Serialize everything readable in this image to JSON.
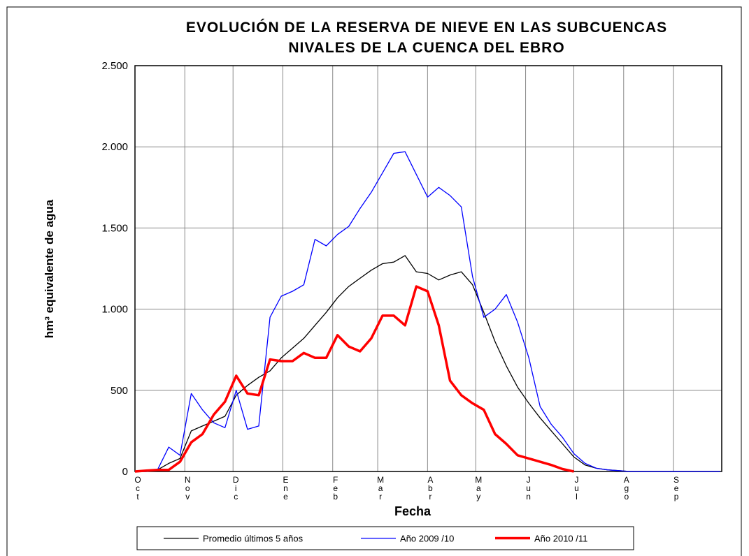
{
  "chart_data": {
    "type": "line",
    "title": [
      "EVOLUCIÓN DE LA RESERVA DE NIEVE EN LAS SUBCUENCAS",
      "NIVALES DE LA CUENCA DEL EBRO"
    ],
    "x_label": "Fecha",
    "y_label": "hm³ equivalente de agua",
    "x": [
      0,
      7,
      14,
      21,
      28,
      35,
      42,
      49,
      56,
      63,
      70,
      77,
      84,
      91,
      98,
      105,
      112,
      119,
      126,
      133,
      140,
      147,
      154,
      161,
      168,
      175,
      182,
      189,
      196,
      203,
      210,
      217,
      224,
      231,
      238,
      245,
      252,
      259,
      266,
      273,
      280,
      287,
      294,
      301,
      308,
      315,
      322,
      329,
      336,
      343,
      350,
      357,
      364
    ],
    "xlim": [
      0,
      365
    ],
    "xticks": [
      {
        "value": 0,
        "label": "Oct"
      },
      {
        "value": 31,
        "label": "Nov"
      },
      {
        "value": 61,
        "label": "Dic"
      },
      {
        "value": 92,
        "label": "Ene"
      },
      {
        "value": 123,
        "label": "Feb"
      },
      {
        "value": 151,
        "label": "Mar"
      },
      {
        "value": 182,
        "label": "Abr"
      },
      {
        "value": 212,
        "label": "May"
      },
      {
        "value": 243,
        "label": "Jun"
      },
      {
        "value": 273,
        "label": "Jul"
      },
      {
        "value": 304,
        "label": "Ago"
      },
      {
        "value": 335,
        "label": "Sep"
      }
    ],
    "ylim": [
      0,
      2500
    ],
    "yticks": [
      0,
      {
        "value": 500,
        "label": "500"
      },
      {
        "value": 1000,
        "label": "1.000"
      },
      {
        "value": 1500,
        "label": "1.500"
      },
      {
        "value": 2000,
        "label": "2.000"
      },
      {
        "value": 2500,
        "label": "2.500"
      }
    ],
    "grid": true,
    "legend": "bottom",
    "series": [
      {
        "name": "Promedio últimos 5 años",
        "color": "#000000",
        "width": 1.3,
        "values": [
          0,
          0,
          10,
          50,
          80,
          250,
          280,
          310,
          340,
          470,
          530,
          580,
          620,
          700,
          760,
          820,
          900,
          980,
          1070,
          1140,
          1190,
          1240,
          1280,
          1290,
          1330,
          1230,
          1220,
          1180,
          1210,
          1230,
          1150,
          980,
          800,
          650,
          520,
          420,
          330,
          250,
          170,
          90,
          40,
          20,
          10,
          5,
          0,
          0,
          0,
          0,
          0,
          0,
          0,
          0,
          0
        ]
      },
      {
        "name": "Año 2009 /10",
        "color": "#0000ff",
        "width": 1.3,
        "values": [
          0,
          0,
          10,
          150,
          100,
          480,
          380,
          300,
          270,
          500,
          260,
          280,
          950,
          1080,
          1110,
          1150,
          1430,
          1390,
          1460,
          1510,
          1620,
          1720,
          1840,
          1960,
          1970,
          1830,
          1690,
          1750,
          1700,
          1630,
          1200,
          950,
          1000,
          1090,
          920,
          700,
          400,
          290,
          210,
          110,
          50,
          20,
          10,
          5,
          0,
          0,
          0,
          0,
          0,
          0,
          0,
          0,
          0
        ]
      },
      {
        "name": "Año 2010 /11",
        "color": "#ff0000",
        "width": 3.5,
        "values": [
          0,
          5,
          10,
          10,
          60,
          180,
          230,
          350,
          430,
          590,
          480,
          470,
          690,
          680,
          680,
          730,
          700,
          700,
          840,
          770,
          740,
          820,
          960,
          960,
          900,
          1140,
          1110,
          900,
          560,
          470,
          420,
          380,
          230,
          170,
          100,
          80,
          60,
          40,
          15,
          0,
          null,
          null,
          null,
          null,
          null,
          null,
          null,
          null,
          null,
          null,
          null,
          null,
          null
        ]
      }
    ]
  }
}
